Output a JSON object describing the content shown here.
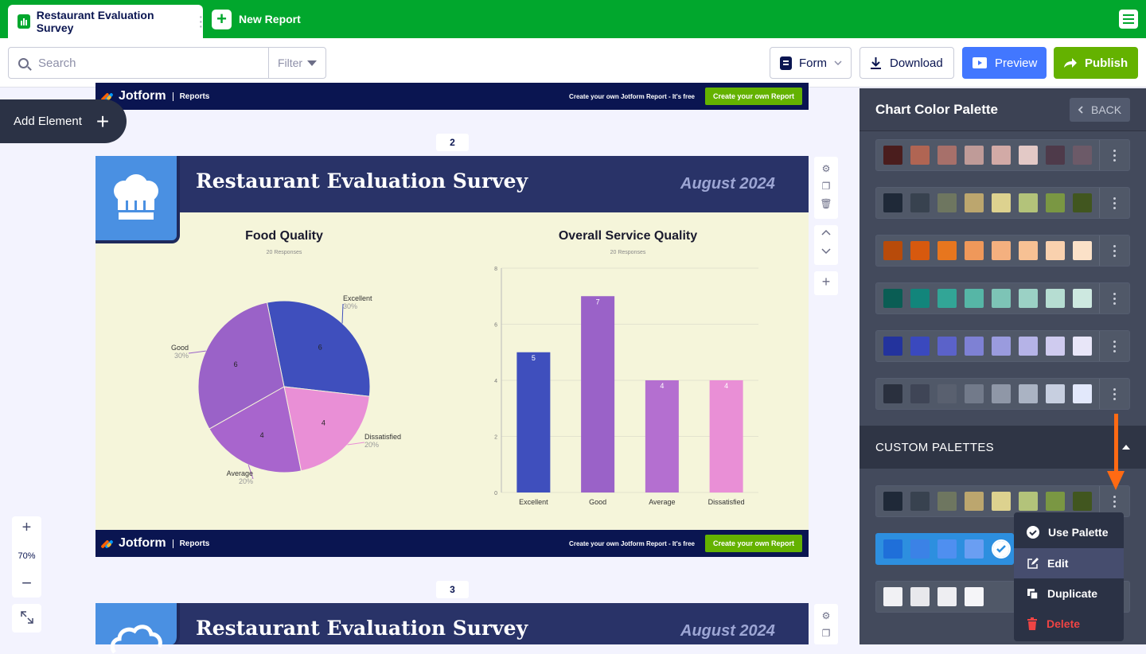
{
  "tab": {
    "title": "Restaurant Evaluation Survey"
  },
  "new_report": "New Report",
  "toolbar": {
    "search_placeholder": "Search",
    "filter": "Filter",
    "form": "Form",
    "download": "Download",
    "preview": "Preview",
    "publish": "Publish"
  },
  "canvas": {
    "add_element": "Add Element",
    "zoom": "70%"
  },
  "footer": {
    "brand": "Jotform",
    "section": "Reports",
    "cta_text": "Create your own Jotform Report - It's free",
    "cta_button": "Create your own Report"
  },
  "pages": [
    {
      "number": "2"
    },
    {
      "number": "3"
    }
  ],
  "slide": {
    "title": "Restaurant Evaluation Survey",
    "date": "August 2024"
  },
  "chart_data": [
    {
      "type": "pie",
      "title": "Food Quality",
      "subtitle": "20 Responses",
      "slices": [
        {
          "label": "Excellent",
          "value": 6,
          "percent": "30%",
          "color": "#3f4fbd"
        },
        {
          "label": "Dissatisfied",
          "value": 4,
          "percent": "20%",
          "color": "#e98fd6"
        },
        {
          "label": "Average",
          "value": 4,
          "percent": "20%",
          "color": "#a865cd"
        },
        {
          "label": "Good",
          "value": 6,
          "percent": "30%",
          "color": "#9a62c8"
        }
      ]
    },
    {
      "type": "bar",
      "title": "Overall Service Quality",
      "subtitle": "20 Responses",
      "categories": [
        "Excellent",
        "Good",
        "Average",
        "Dissatisfied"
      ],
      "values": [
        5,
        7,
        4,
        4
      ],
      "colors": [
        "#3f4fbd",
        "#9a62c8",
        "#b46fd0",
        "#e98fd6"
      ],
      "ylim": [
        0,
        8
      ],
      "yticks": [
        0,
        2,
        4,
        6,
        8
      ],
      "grid": true
    }
  ],
  "panel": {
    "title": "Chart Color Palette",
    "back": "BACK",
    "custom_title": "CUSTOM PALETTES",
    "palettes": [
      [
        "#4a1d1d",
        "#b06553",
        "#a7706a",
        "#bf9b98",
        "#d2aaa6",
        "#e3c9c6",
        "#4e3a4a",
        "#6c5a68"
      ],
      [
        "#1f2938",
        "#38424f",
        "#6e7660",
        "#bca66e",
        "#ddd28f",
        "#b3c37a",
        "#7a9743",
        "#41561f"
      ],
      [
        "#b84b0a",
        "#d7590e",
        "#e7761e",
        "#ef985a",
        "#f4b07f",
        "#f7c194",
        "#f9d1ae",
        "#fbe1c8"
      ],
      [
        "#0a5d54",
        "#12857b",
        "#32a596",
        "#56b6a6",
        "#7dc4b6",
        "#9bd1c5",
        "#b6ddd2",
        "#cde8e0"
      ],
      [
        "#23339d",
        "#3a49be",
        "#5b62c9",
        "#7e81d4",
        "#9a9bde",
        "#b5b3e7",
        "#cfcbef",
        "#e8e6f8"
      ],
      [
        "#2a303e",
        "#3f4556",
        "#59606f",
        "#727a8a",
        "#8f97a7",
        "#aab3c3",
        "#c7cfe0",
        "#e2e8fb"
      ]
    ],
    "custom": [
      [
        "#1f2938",
        "#38424f",
        "#6e7660",
        "#bca66e",
        "#ddd28f",
        "#b3c37a",
        "#7a9743",
        "#41561f"
      ],
      [
        "#1f6fd9",
        "#3b82e6",
        "#4f8ff0",
        "#6a9ef2",
        "#ffffff"
      ],
      [
        "#f1f1f4",
        "#e8e8ec",
        "#eeeef2",
        "#f5f5f8"
      ]
    ]
  },
  "context_menu": {
    "use": "Use Palette",
    "edit": "Edit",
    "duplicate": "Duplicate",
    "delete": "Delete"
  },
  "colors": {
    "brand_green": "#01a72d",
    "preview_blue": "#4277ff",
    "publish_green": "#64b200",
    "navy": "#0a1551",
    "delete_red": "#ef4444",
    "arrow_orange": "#ff6a13"
  }
}
